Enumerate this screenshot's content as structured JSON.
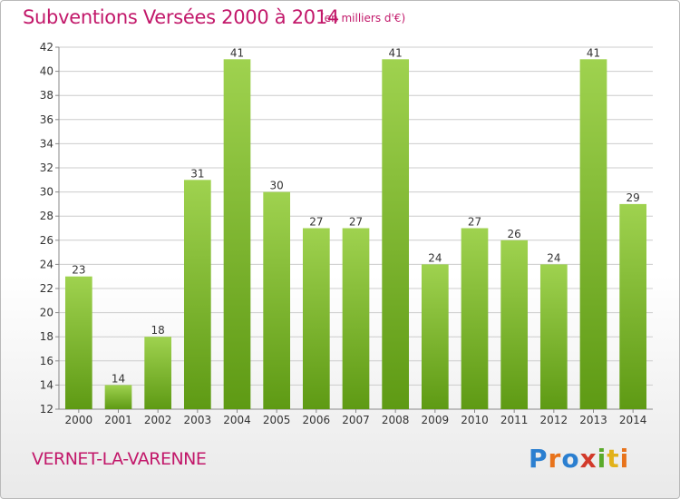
{
  "header": {
    "title": "Subventions Versées 2000 à 2014",
    "subtitle": "(en milliers d'€)"
  },
  "footer": {
    "town": "VERNET-LA-VARENNE",
    "logo": [
      "P",
      "r",
      "o",
      "x",
      "i",
      "t",
      "i"
    ]
  },
  "colors": {
    "title": "#c2186a",
    "bar_light": "#9fd24f",
    "bar_dark": "#5e9a14",
    "grid": "#cccccc",
    "axis": "#888888"
  },
  "chart_data": {
    "type": "bar",
    "title": "Subventions Versées 2000 à 2014",
    "subtitle": "(en milliers d'€)",
    "xlabel": "",
    "ylabel": "",
    "categories": [
      "2000",
      "2001",
      "2002",
      "2003",
      "2004",
      "2005",
      "2006",
      "2007",
      "2008",
      "2009",
      "2010",
      "2011",
      "2012",
      "2013",
      "2014"
    ],
    "values": [
      23,
      14,
      18,
      31,
      41,
      30,
      27,
      27,
      41,
      24,
      27,
      26,
      24,
      41,
      29
    ],
    "ylim": [
      12,
      42
    ],
    "yticks": [
      12,
      14,
      16,
      18,
      20,
      22,
      24,
      26,
      28,
      30,
      32,
      34,
      36,
      38,
      40,
      42
    ],
    "grid": true,
    "data_labels": true
  }
}
